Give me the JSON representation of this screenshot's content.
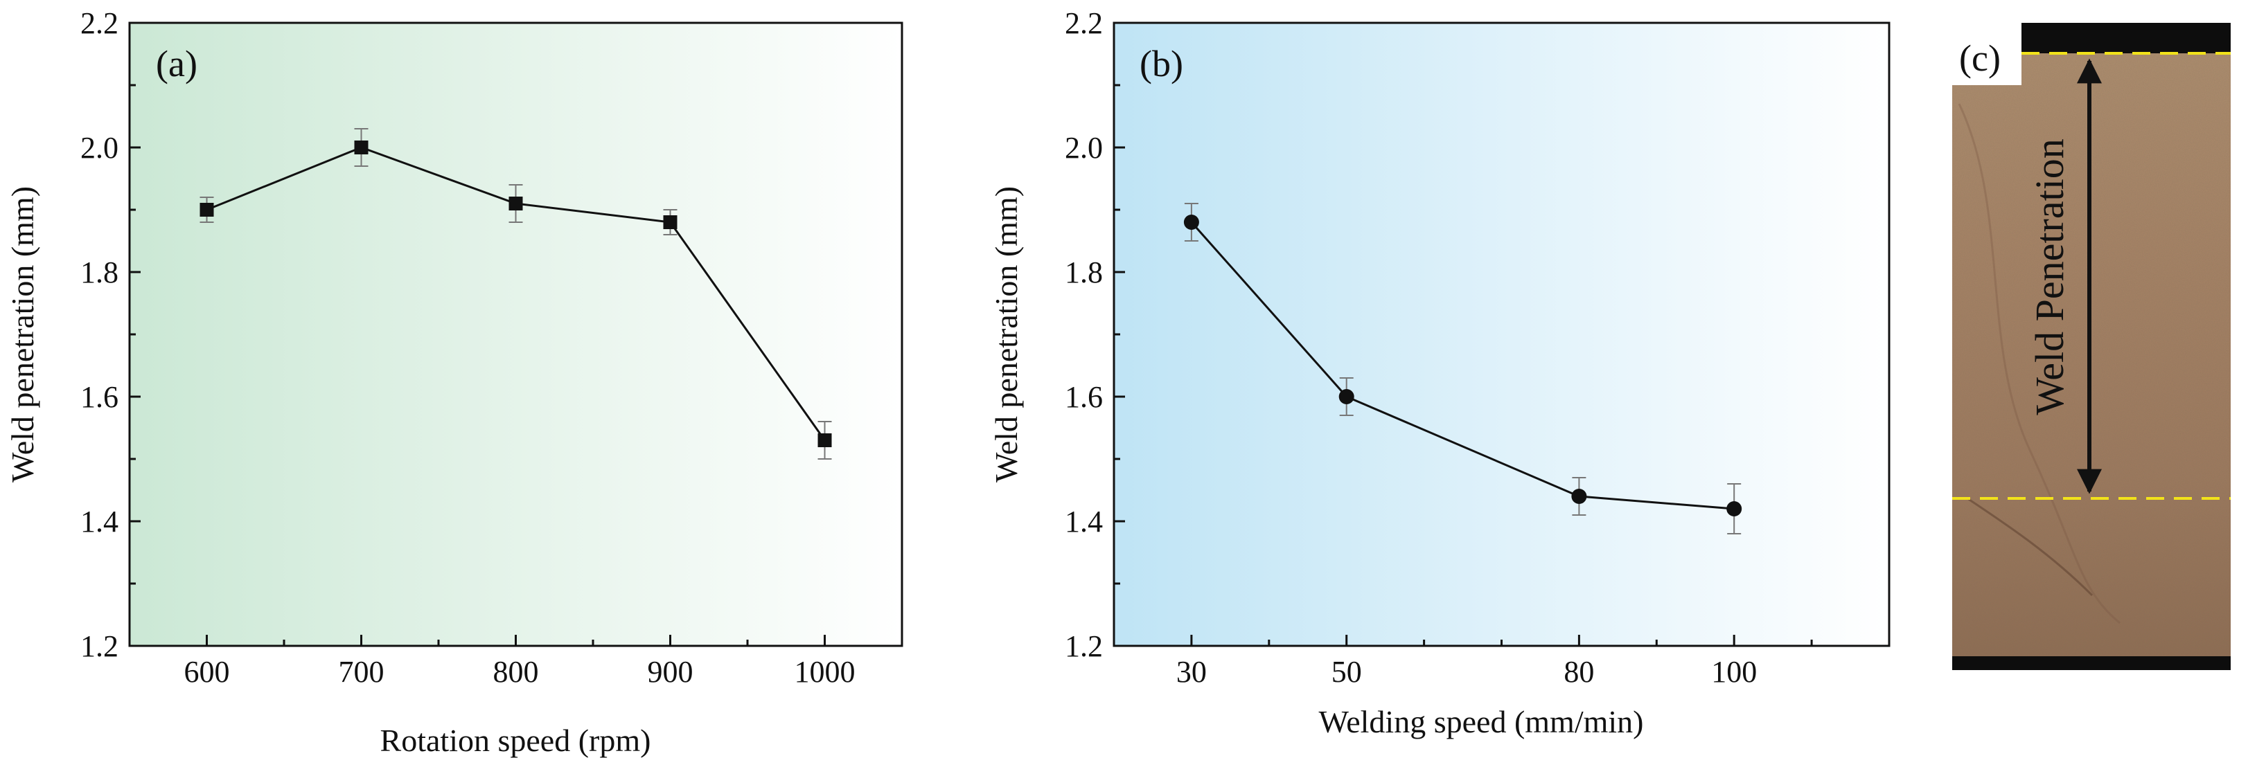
{
  "colors": {
    "panel_a_fill": "#cbe8d5",
    "panel_b_fill": "#bfe4f5",
    "line": "#111111",
    "errorbar": "#777777",
    "dash": "#f2e21a",
    "specimen_dark": "#0d0d0d",
    "specimen_mid": "#a88466"
  },
  "chart_data": [
    {
      "type": "line",
      "panel_label": "(a)",
      "marker": "square",
      "xlabel": "Rotation speed (rpm)",
      "ylabel": "Weld penetration (mm)",
      "x": [
        600,
        700,
        800,
        900,
        1000
      ],
      "y": [
        1.9,
        2.0,
        1.91,
        1.88,
        1.53
      ],
      "yerr": [
        0.02,
        0.03,
        0.03,
        0.02,
        0.03
      ],
      "xlim": [
        550,
        1050
      ],
      "ylim": [
        1.2,
        2.2
      ],
      "xticks": [
        600,
        700,
        800,
        900,
        1000
      ],
      "xtick_labels": [
        "600",
        "700",
        "800",
        "900",
        "1000"
      ],
      "yticks": [
        1.2,
        1.4,
        1.6,
        1.8,
        2.0,
        2.2
      ],
      "ytick_labels": [
        "1.2",
        "1.4",
        "1.6",
        "1.8",
        "2.0",
        "2.2"
      ]
    },
    {
      "type": "line",
      "panel_label": "(b)",
      "marker": "circle",
      "xlabel": "Welding speed (mm/min)",
      "ylabel": "Weld penetration (mm)",
      "x": [
        30,
        50,
        80,
        100
      ],
      "y": [
        1.88,
        1.6,
        1.44,
        1.42
      ],
      "yerr": [
        0.03,
        0.03,
        0.03,
        0.04
      ],
      "xlim": [
        20,
        120
      ],
      "ylim": [
        1.2,
        2.2
      ],
      "xticks": [
        30,
        50,
        80,
        100
      ],
      "xtick_labels": [
        "30",
        "50",
        "80",
        "100"
      ],
      "minor_xticks": [
        40,
        60,
        70,
        90,
        110
      ],
      "yticks": [
        1.2,
        1.4,
        1.6,
        1.8,
        2.0,
        2.2
      ],
      "ytick_labels": [
        "1.2",
        "1.4",
        "1.6",
        "1.8",
        "2.0",
        "2.2"
      ]
    }
  ],
  "panel_c": {
    "label": "(c)",
    "annotation": "Weld Penetration"
  }
}
